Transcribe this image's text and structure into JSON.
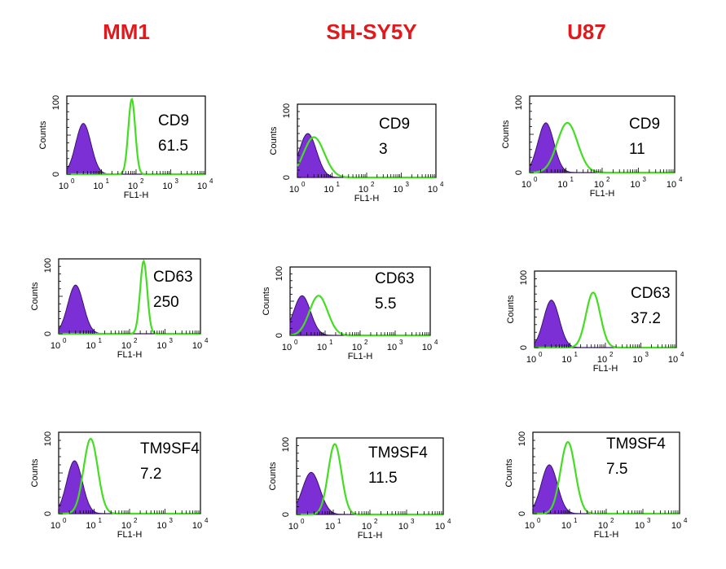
{
  "columns": [
    "MM1",
    "SH-SY5Y",
    "U87"
  ],
  "colors": {
    "title": "#e0191c",
    "isotype_fill": "#7d2fd6",
    "isotype_outline": "#3a1270",
    "marker_line": "#44dd22"
  },
  "axis": {
    "y_label": "Counts",
    "x_label": "FL1-H",
    "y_ticks": [
      "0",
      "100"
    ]
  },
  "chart_data": [
    {
      "type": "area",
      "cell_line": "MM1",
      "marker": "CD9",
      "value": "61.5",
      "xscale": "log",
      "xlim": [
        1,
        10000
      ],
      "ylim": [
        0,
        100
      ],
      "x_ticks": [
        "10",
        "10",
        "10",
        "10",
        "10"
      ],
      "x_tick_exponents": [
        "0",
        "1",
        "2",
        "3",
        "4"
      ],
      "isotype": {
        "peak_x": 3,
        "peak_y": 65,
        "width": 0.22
      },
      "stained": {
        "peak_x": 75,
        "peak_y": 96,
        "width": 0.1
      }
    },
    {
      "type": "area",
      "cell_line": "SH-SY5Y",
      "marker": "CD9",
      "value": "3",
      "xscale": "log",
      "xlim": [
        1,
        10000
      ],
      "ylim": [
        0,
        100
      ],
      "x_ticks": [
        "10",
        "10",
        "10",
        "10",
        "10"
      ],
      "x_tick_exponents": [
        "0",
        "1",
        "2",
        "3",
        "4"
      ],
      "isotype": {
        "peak_x": 2,
        "peak_y": 60,
        "width": 0.25
      },
      "stained": {
        "peak_x": 3,
        "peak_y": 55,
        "width": 0.3
      }
    },
    {
      "type": "area",
      "cell_line": "U87",
      "marker": "CD9",
      "value": "11",
      "xscale": "log",
      "xlim": [
        1,
        10000
      ],
      "ylim": [
        0,
        100
      ],
      "x_ticks": [
        "10",
        "10",
        "10",
        "10",
        "10"
      ],
      "x_tick_exponents": [
        "0",
        "1",
        "2",
        "3",
        "4"
      ],
      "isotype": {
        "peak_x": 2.8,
        "peak_y": 65,
        "width": 0.22
      },
      "stained": {
        "peak_x": 11,
        "peak_y": 65,
        "width": 0.28
      }
    },
    {
      "type": "area",
      "cell_line": "MM1",
      "marker": "CD63",
      "value": "250",
      "xscale": "log",
      "xlim": [
        1,
        10000
      ],
      "ylim": [
        0,
        100
      ],
      "x_ticks": [
        "10",
        "10",
        "10",
        "10",
        "10"
      ],
      "x_tick_exponents": [
        "0",
        "1",
        "2",
        "3",
        "4"
      ],
      "isotype": {
        "peak_x": 3,
        "peak_y": 65,
        "width": 0.22
      },
      "stained": {
        "peak_x": 250,
        "peak_y": 97,
        "width": 0.1
      }
    },
    {
      "type": "area",
      "cell_line": "SH-SY5Y",
      "marker": "CD63",
      "value": "5.5",
      "xscale": "log",
      "xlim": [
        1,
        10000
      ],
      "ylim": [
        0,
        100
      ],
      "x_ticks": [
        "10",
        "10",
        "10",
        "10",
        "10"
      ],
      "x_tick_exponents": [
        "0",
        "1",
        "2",
        "3",
        "4"
      ],
      "isotype": {
        "peak_x": 2.2,
        "peak_y": 58,
        "width": 0.24
      },
      "stained": {
        "peak_x": 6.5,
        "peak_y": 58,
        "width": 0.26
      }
    },
    {
      "type": "area",
      "cell_line": "U87",
      "marker": "CD63",
      "value": "37.2",
      "xscale": "log",
      "xlim": [
        1,
        10000
      ],
      "ylim": [
        0,
        100
      ],
      "x_ticks": [
        "10",
        "10",
        "10",
        "10",
        "10"
      ],
      "x_tick_exponents": [
        "0",
        "1",
        "2",
        "3",
        "4"
      ],
      "isotype": {
        "peak_x": 3,
        "peak_y": 62,
        "width": 0.22
      },
      "stained": {
        "peak_x": 45,
        "peak_y": 72,
        "width": 0.2
      }
    },
    {
      "type": "area",
      "cell_line": "MM1",
      "marker": "TM9SF4",
      "value": "7.2",
      "xscale": "log",
      "xlim": [
        1,
        10000
      ],
      "ylim": [
        0,
        100
      ],
      "x_ticks": [
        "10",
        "10",
        "10",
        "10",
        "10"
      ],
      "x_tick_exponents": [
        "0",
        "1",
        "2",
        "3",
        "4"
      ],
      "isotype": {
        "peak_x": 2.8,
        "peak_y": 65,
        "width": 0.22
      },
      "stained": {
        "peak_x": 8,
        "peak_y": 92,
        "width": 0.2
      }
    },
    {
      "type": "area",
      "cell_line": "SH-SY5Y",
      "marker": "TM9SF4",
      "value": "11.5",
      "xscale": "log",
      "xlim": [
        1,
        10000
      ],
      "ylim": [
        0,
        100
      ],
      "x_ticks": [
        "10",
        "10",
        "10",
        "10",
        "10"
      ],
      "x_tick_exponents": [
        "0",
        "1",
        "2",
        "3",
        "4"
      ],
      "isotype": {
        "peak_x": 2.5,
        "peak_y": 55,
        "width": 0.24
      },
      "stained": {
        "peak_x": 11,
        "peak_y": 92,
        "width": 0.18
      }
    },
    {
      "type": "area",
      "cell_line": "U87",
      "marker": "TM9SF4",
      "value": "7.5",
      "xscale": "log",
      "xlim": [
        1,
        10000
      ],
      "ylim": [
        0,
        100
      ],
      "x_ticks": [
        "10",
        "10",
        "10",
        "10",
        "10"
      ],
      "x_tick_exponents": [
        "0",
        "1",
        "2",
        "3",
        "4"
      ],
      "isotype": {
        "peak_x": 2.8,
        "peak_y": 60,
        "width": 0.22
      },
      "stained": {
        "peak_x": 9,
        "peak_y": 88,
        "width": 0.2
      }
    }
  ]
}
